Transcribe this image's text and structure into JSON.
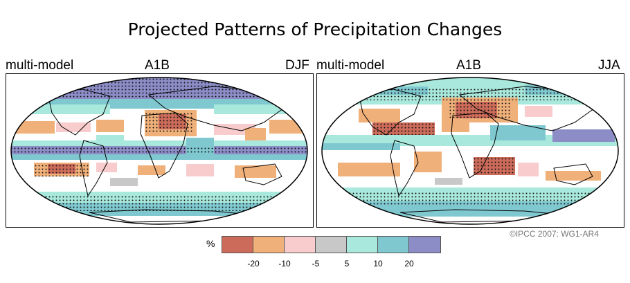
{
  "title": "Projected Patterns of Precipitation Changes",
  "credit": "©IPCC  2007: WG1-AR4",
  "panels": [
    {
      "model": "multi-model",
      "scenario": "A1B",
      "season": "DJF"
    },
    {
      "model": "multi-model",
      "scenario": "A1B",
      "season": "JJA"
    }
  ],
  "colorbar": {
    "unit": "%",
    "colors": [
      "#cc6b5a",
      "#f0b07a",
      "#f8cccc",
      "#c8c8c8",
      "#a9e8dc",
      "#7fc8cf",
      "#8c8cc6"
    ],
    "tick_labels": [
      "-20",
      "-10",
      "-5",
      "5",
      "10",
      "20"
    ]
  }
}
